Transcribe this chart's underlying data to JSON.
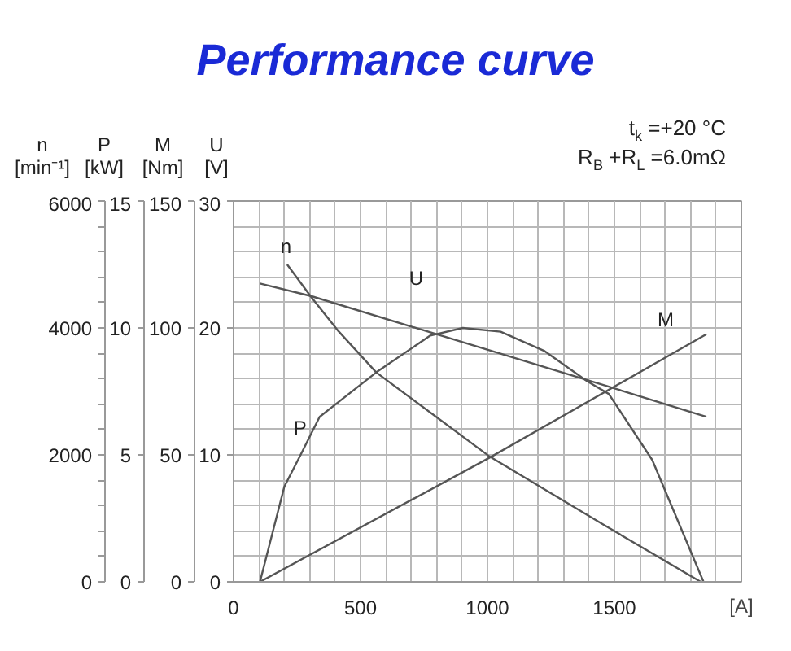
{
  "chart_data": [
    {
      "type": "line",
      "title": "Performance curve",
      "xlabel": "[A]",
      "ylabel": "n [min⁻¹]",
      "y2label": "P [kW]",
      "y3label": "M [Nm]",
      "annotations": [
        "t$_{k}$ =+20  °C",
        "R$_{B}$ +R$_{L}$ =6.0mΩ"
      ],
      "xlim": [
        0,
        2000
      ],
      "xticks": [
        0,
        {
          "value": 100,
          "label": null
        },
        {
          "value": 200,
          "label": null
        },
        {
          "value": 300,
          "label": null
        },
        {
          "value": 400,
          "label": null
        },
        500,
        {
          "value": 600,
          "label": null
        },
        {
          "value": 700,
          "label": null
        },
        {
          "value": 800,
          "label": null
        },
        {
          "value": 900,
          "label": null
        },
        1000,
        {
          "value": 1100,
          "label": null
        },
        {
          "value": 1200,
          "label": null
        },
        {
          "value": 1300,
          "label": null
        },
        {
          "value": 1400,
          "label": null
        },
        1500,
        {
          "value": 1600,
          "label": null
        },
        {
          "value": 1700,
          "label": null
        },
        {
          "value": 1800,
          "label": null
        },
        {
          "value": 1900,
          "label": null
        },
        {
          "value": 2000,
          "label": null
        }
      ],
      "ylim": [
        0,
        6000
      ],
      "yticks": [
        0,
        {
          "value": 400,
          "label": null
        },
        {
          "value": 800,
          "label": null
        },
        {
          "value": 1200,
          "label": null
        },
        {
          "value": 1600,
          "label": null
        },
        2000,
        {
          "value": 2400,
          "label": null
        },
        {
          "value": 2800,
          "label": null
        },
        {
          "value": 3200,
          "label": null
        },
        {
          "value": 3600,
          "label": null
        },
        4000,
        {
          "value": 4400,
          "label": null
        },
        {
          "value": 4800,
          "label": null
        },
        {
          "value": 5200,
          "label": null
        },
        {
          "value": 5600,
          "label": null
        },
        6000
      ],
      "y2lim": [
        0,
        15
      ],
      "y2ticks": [
        0,
        5,
        10,
        15
      ],
      "y3lim": [
        0,
        150
      ],
      "y3ticks": [
        0,
        50,
        100,
        150
      ],
      "grid": true,
      "series": [
        {
          "name": "n",
          "color": "#555555",
          "x": [
            211,
            307,
            413,
            562,
            1010,
            1457,
            1840
          ],
          "values": [
            5000,
            4480,
            3950,
            3300,
            1970,
            900,
            0
          ]
        },
        {
          "name": "P",
          "color": "#555555",
          "axis": "y2",
          "x": [
            104,
            200,
            264,
            339,
            562,
            775,
            903,
            1052,
            1223,
            1393,
            1478,
            1649,
            1851
          ],
          "values": [
            0,
            3.75,
            5.0,
            6.5,
            8.25,
            9.7,
            10.0,
            9.85,
            9.1,
            7.9,
            7.4,
            4.8,
            0
          ]
        },
        {
          "name": "M",
          "color": "#555555",
          "axis": "y3",
          "x": [
            104,
            1010,
            1862
          ],
          "values": [
            0,
            49,
            97.5
          ]
        }
      ]
    },
    {
      "type": "line",
      "ylabel": "U [V]",
      "xlim": [
        0,
        2000
      ],
      "ylim": [
        0,
        30
      ],
      "yticks": [
        0,
        10,
        20,
        30
      ],
      "tick_labels": "y",
      "series": [
        {
          "name": "U",
          "color": "#555555",
          "x": [
            104,
            307,
            1457,
            1862
          ],
          "values": [
            23.5,
            22.5,
            15.5,
            13
          ]
        }
      ]
    }
  ]
}
